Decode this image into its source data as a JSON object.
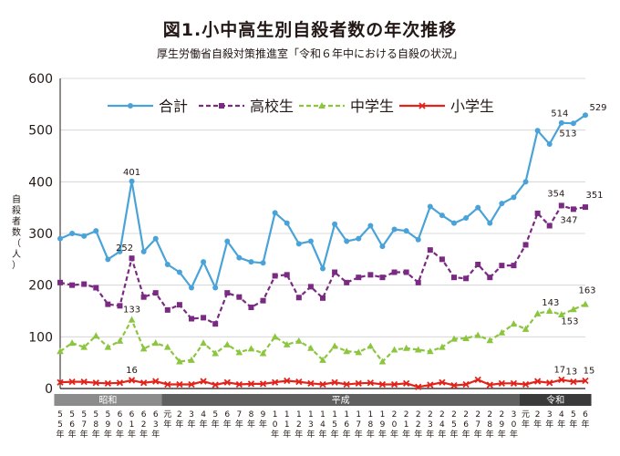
{
  "chart_data": {
    "type": "line",
    "title": "図1.小中高生別自殺者数の年次推移",
    "subtitle": "厚生労働省自殺対策推進室「令和６年中における自殺の状況」",
    "ylabel": "自殺者数（人）",
    "ylim": [
      0,
      600
    ],
    "yticks": [
      0,
      100,
      200,
      300,
      400,
      500,
      600
    ],
    "grid": true,
    "legend": "top",
    "x": [
      "55年",
      "56年",
      "57年",
      "58年",
      "59年",
      "60年",
      "61年",
      "62年",
      "63年",
      "元年",
      "2年",
      "3年",
      "4年",
      "5年",
      "6年",
      "7年",
      "8年",
      "9年",
      "10年",
      "11年",
      "12年",
      "13年",
      "14年",
      "15年",
      "16年",
      "17年",
      "18年",
      "19年",
      "20年",
      "21年",
      "22年",
      "23年",
      "24年",
      "25年",
      "26年",
      "27年",
      "28年",
      "29年",
      "30年",
      "元年",
      "2年",
      "3年",
      "4年",
      "5年",
      "6年"
    ],
    "eras": [
      {
        "name": "昭和",
        "start": 0,
        "end": 8
      },
      {
        "name": "平成",
        "start": 9,
        "end": 38
      },
      {
        "name": "令和",
        "start": 39,
        "end": 44
      }
    ],
    "series": [
      {
        "name": "合計",
        "color": "#4aa3d8",
        "marker": "circle",
        "values": [
          290,
          300,
          295,
          305,
          250,
          265,
          401,
          265,
          290,
          240,
          225,
          195,
          245,
          195,
          285,
          253,
          245,
          243,
          340,
          320,
          280,
          285,
          232,
          318,
          285,
          290,
          315,
          275,
          308,
          305,
          288,
          352,
          335,
          320,
          330,
          350,
          320,
          358,
          370,
          400,
          499,
          473,
          514,
          513,
          529
        ]
      },
      {
        "name": "高校生",
        "color": "#7a2a82",
        "marker": "square",
        "values": [
          205,
          200,
          202,
          195,
          163,
          160,
          252,
          177,
          185,
          152,
          162,
          135,
          137,
          125,
          185,
          177,
          157,
          170,
          218,
          220,
          176,
          197,
          175,
          225,
          205,
          215,
          220,
          215,
          225,
          225,
          205,
          268,
          250,
          215,
          213,
          240,
          215,
          238,
          238,
          278,
          339,
          315,
          354,
          347,
          351
        ]
      },
      {
        "name": "中学生",
        "color": "#8cc63f",
        "marker": "triangle",
        "values": [
          72,
          88,
          80,
          102,
          80,
          92,
          133,
          77,
          88,
          80,
          52,
          55,
          88,
          68,
          85,
          70,
          77,
          68,
          100,
          85,
          92,
          78,
          55,
          82,
          72,
          70,
          82,
          52,
          75,
          78,
          75,
          72,
          80,
          96,
          97,
          103,
          93,
          108,
          125,
          115,
          145,
          150,
          143,
          153,
          163
        ]
      },
      {
        "name": "小学生",
        "color": "#e2231a",
        "marker": "x",
        "values": [
          12,
          13,
          13,
          11,
          10,
          11,
          16,
          11,
          14,
          8,
          8,
          8,
          14,
          7,
          12,
          8,
          9,
          9,
          12,
          15,
          13,
          10,
          8,
          12,
          8,
          10,
          11,
          8,
          8,
          10,
          3,
          7,
          12,
          6,
          8,
          17,
          7,
          10,
          10,
          8,
          14,
          11,
          17,
          13,
          15
        ]
      }
    ],
    "data_labels": [
      {
        "series": 0,
        "index": 6,
        "text": "401"
      },
      {
        "series": 0,
        "index": 42,
        "text": "514"
      },
      {
        "series": 0,
        "index": 43,
        "text": "513"
      },
      {
        "series": 0,
        "index": 44,
        "text": "529"
      },
      {
        "series": 1,
        "index": 6,
        "text": "252"
      },
      {
        "series": 1,
        "index": 42,
        "text": "354"
      },
      {
        "series": 1,
        "index": 43,
        "text": "347"
      },
      {
        "series": 1,
        "index": 44,
        "text": "351"
      },
      {
        "series": 2,
        "index": 6,
        "text": "133"
      },
      {
        "series": 2,
        "index": 42,
        "text": "143"
      },
      {
        "series": 2,
        "index": 43,
        "text": "153"
      },
      {
        "series": 2,
        "index": 44,
        "text": "163"
      },
      {
        "series": 3,
        "index": 6,
        "text": "16"
      },
      {
        "series": 3,
        "index": 42,
        "text": "17"
      },
      {
        "series": 3,
        "index": 43,
        "text": "13"
      },
      {
        "series": 3,
        "index": 44,
        "text": "15"
      }
    ]
  }
}
